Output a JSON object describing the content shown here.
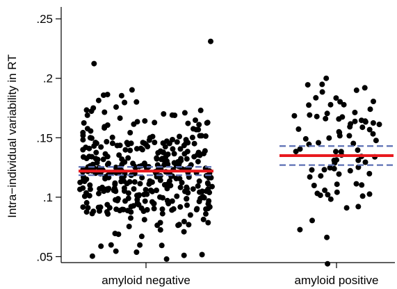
{
  "chart_data": {
    "type": "scatter",
    "title": "",
    "ylabel": "Intra−individual variability in RT",
    "xlabel": "",
    "ylim": [
      0.045,
      0.26
    ],
    "yticks": [
      0.05,
      0.1,
      0.15,
      0.2,
      0.25
    ],
    "ytick_labels": [
      ".05",
      ".1",
      ".15",
      ".2",
      ".25"
    ],
    "categories": [
      "amyloid negative",
      "amyloid positive"
    ],
    "grid": false,
    "colors": {
      "points": "#000000",
      "mean": "#e8191e",
      "ci": "#5b6fb4"
    },
    "groups": [
      {
        "name": "amyloid negative",
        "count": 380,
        "mean": 0.122,
        "ci": [
          0.1185,
          0.1255
        ],
        "min": 0.048,
        "max": 0.231
      },
      {
        "name": "amyloid positive",
        "count": 85,
        "mean": 0.135,
        "ci": [
          0.127,
          0.143
        ],
        "min": 0.044,
        "max": 0.2
      }
    ]
  }
}
